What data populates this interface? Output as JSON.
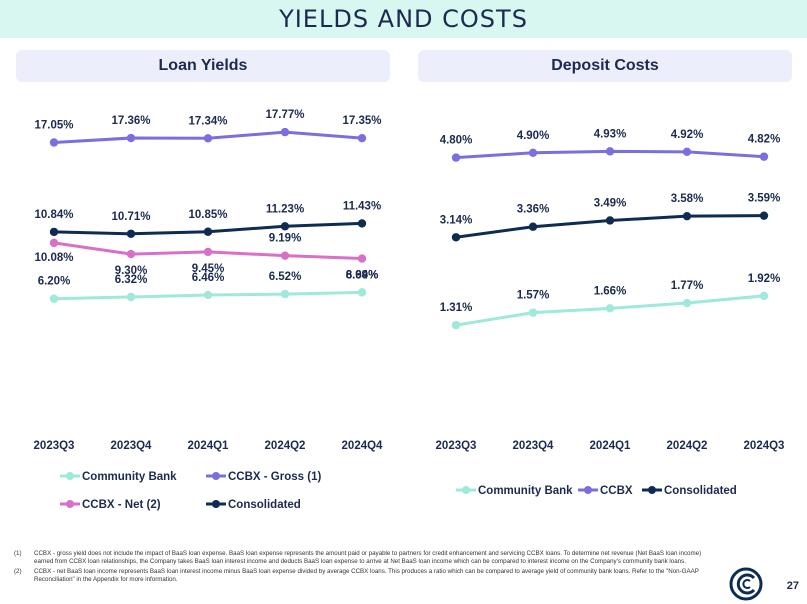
{
  "page": {
    "title": "YIELDS AND COSTS",
    "page_number": "27"
  },
  "colors": {
    "community_bank": "#9fe8dc",
    "ccbx": "#7b6fe0",
    "ccbx_net": "#d86fc8",
    "consolidated": "#0e2c52"
  },
  "footnotes": [
    {
      "num": "(1)",
      "text": "CCBX - gross yield does not include the impact of BaaS loan expense. BaaS loan expense represents the amount paid or payable to partners for credit enhancement and servicing CCBX loans. To determine net revenue (Net BaaS loan income) earned from CCBX loan relationships, the Company takes BaaS loan interest income and deducts BaaS loan expense to arrive at Net BaaS loan income which can be compared to interest income on the Company's community bank loans."
    },
    {
      "num": "(2)",
      "text": "CCBX - net BaaS loan income represents BaaS loan interest income minus BaaS loan expense divided by average CCBX loans. This produces a ratio which can be compared to average yield of community bank loans. Refer to the \"Non-GAAP Reconciliation\" in the Appendix for more information."
    }
  ],
  "chart_data": [
    {
      "type": "line",
      "title": "Loan Yields",
      "categories": [
        "2023Q3",
        "2023Q4",
        "2024Q1",
        "2024Q2",
        "2024Q4"
      ],
      "series": [
        {
          "name": "CCBX - Gross (1)",
          "values": [
            17.05,
            17.36,
            17.34,
            17.77,
            17.35
          ],
          "labels": [
            "17.05%",
            "17.36%",
            "17.34%",
            "17.77%",
            "17.35%"
          ],
          "label_pos": "above"
        },
        {
          "name": "Consolidated",
          "values": [
            10.84,
            10.71,
            10.85,
            11.23,
            11.43
          ],
          "labels": [
            "10.84%",
            "10.71%",
            "10.85%",
            "11.23%",
            "11.43%"
          ],
          "label_pos": "above"
        },
        {
          "name": "CCBX - Net (2)",
          "values": [
            10.08,
            9.3,
            9.45,
            9.19,
            8.99
          ],
          "labels": [
            "10.08%",
            "9.30%",
            "9.45%",
            "9.19%",
            "8.99%"
          ],
          "label_pos": "mixed"
        },
        {
          "name": "Community Bank",
          "values": [
            6.2,
            6.32,
            6.46,
            6.52,
            6.64
          ],
          "labels": [
            "6.20%",
            "6.32%",
            "6.46%",
            "6.52%",
            "6.64%"
          ],
          "label_pos": "above"
        }
      ],
      "legend": [
        "Community Bank",
        "CCBX - Gross (1)",
        "CCBX - Net (2)",
        "Consolidated"
      ],
      "ylim": [
        0,
        20
      ],
      "xlabel": "",
      "ylabel": "",
      "grid": false
    },
    {
      "type": "line",
      "title": "Deposit Costs",
      "categories": [
        "2023Q3",
        "2023Q4",
        "2024Q1",
        "2024Q2",
        "2024Q3"
      ],
      "series": [
        {
          "name": "CCBX",
          "values": [
            4.8,
            4.9,
            4.93,
            4.92,
            4.82
          ],
          "labels": [
            "4.80%",
            "4.90%",
            "4.93%",
            "4.92%",
            "4.82%"
          ],
          "label_pos": "above"
        },
        {
          "name": "Consolidated",
          "values": [
            3.14,
            3.36,
            3.49,
            3.58,
            3.59
          ],
          "labels": [
            "3.14%",
            "3.36%",
            "3.49%",
            "3.58%",
            "3.59%"
          ],
          "label_pos": "above"
        },
        {
          "name": "Community Bank",
          "values": [
            1.31,
            1.57,
            1.66,
            1.77,
            1.92
          ],
          "labels": [
            "1.31%",
            "1.57%",
            "1.66%",
            "1.77%",
            "1.92%"
          ],
          "label_pos": "above"
        }
      ],
      "legend": [
        "Community Bank",
        "CCBX",
        "Consolidated"
      ],
      "ylim": [
        0,
        6
      ],
      "xlabel": "",
      "ylabel": "",
      "grid": false
    }
  ]
}
